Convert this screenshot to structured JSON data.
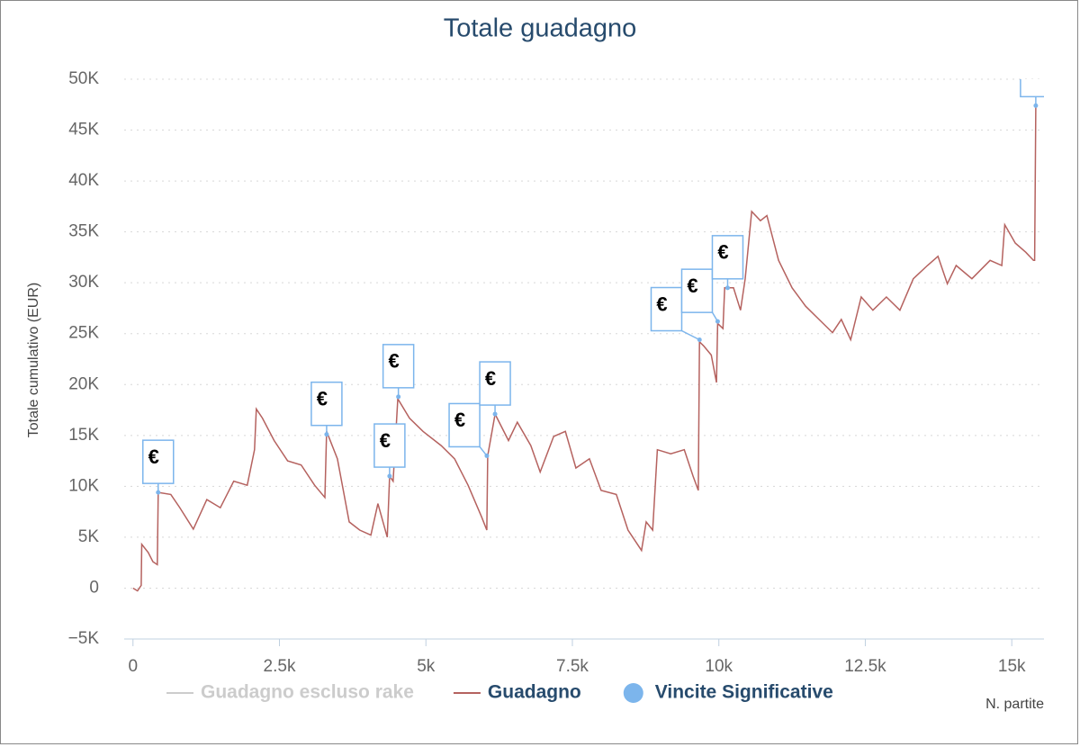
{
  "chart_data": {
    "type": "line",
    "title": "Totale guadagno",
    "y_axis_title": "Totale cumulativo (EUR)",
    "x_axis_title": "N. partite",
    "xlim": [
      -150,
      15550
    ],
    "xticks": [
      0,
      {
        "value": 2500,
        "label": "2.5k"
      },
      {
        "value": 5000,
        "label": "5k"
      },
      {
        "value": 7500,
        "label": "7.5k"
      },
      {
        "value": 10000,
        "label": "10k"
      },
      {
        "value": 12500,
        "label": "12.5k"
      },
      {
        "value": 15000,
        "label": "15k"
      }
    ],
    "ylim": [
      -5000,
      50000
    ],
    "yticks": [
      {
        "value": -5000,
        "label": "−5K"
      },
      0,
      {
        "value": 5000,
        "label": "5K"
      },
      {
        "value": 10000,
        "label": "10K"
      },
      {
        "value": 15000,
        "label": "15K"
      },
      {
        "value": 20000,
        "label": "20K"
      },
      {
        "value": 25000,
        "label": "25K"
      },
      {
        "value": 30000,
        "label": "30K"
      },
      {
        "value": 35000,
        "label": "35K"
      },
      {
        "value": 40000,
        "label": "40K"
      },
      {
        "value": 45000,
        "label": "45K"
      },
      {
        "value": 50000,
        "label": "50K"
      }
    ],
    "grid": true,
    "series": [
      {
        "name": "Guadagno escluso rake",
        "color": "#cccccc",
        "visible": false
      },
      {
        "name": "Guadagno",
        "color": "#b5625f",
        "visible": true,
        "x": [
          0,
          77,
          140,
          150,
          260,
          340,
          415,
          430,
          645,
          800,
          1030,
          1260,
          1490,
          1720,
          1950,
          2075,
          2105,
          2210,
          2410,
          2640,
          2870,
          3100,
          3275,
          3305,
          3490,
          3690,
          3870,
          4060,
          4180,
          4340,
          4380,
          4440,
          4520,
          4720,
          4950,
          5260,
          5490,
          5720,
          5950,
          6040,
          6055,
          6180,
          6410,
          6560,
          6790,
          6950,
          7180,
          7380,
          7560,
          7790,
          7990,
          8250,
          8450,
          8680,
          8760,
          8870,
          8950,
          9180,
          9410,
          9560,
          9650,
          9670,
          9740,
          9870,
          9960,
          9980,
          10070,
          10100,
          10250,
          10370,
          10450,
          10560,
          10710,
          10820,
          11020,
          11250,
          11480,
          11710,
          11940,
          12090,
          12250,
          12430,
          12630,
          12860,
          13090,
          13320,
          13560,
          13740,
          13900,
          14050,
          14320,
          14630,
          14830,
          14880,
          15060,
          15240,
          15370,
          15390,
          15410
        ],
        "values": [
          0,
          -270,
          270,
          4300,
          3500,
          2600,
          2300,
          9400,
          9200,
          7900,
          5800,
          8700,
          7900,
          10500,
          10100,
          13600,
          17600,
          16700,
          14500,
          12500,
          12100,
          10100,
          8900,
          15400,
          12700,
          6500,
          5700,
          5200,
          8300,
          5000,
          11000,
          10500,
          18600,
          16700,
          15400,
          14000,
          12700,
          10100,
          7000,
          5700,
          13000,
          17100,
          14500,
          16300,
          14000,
          11400,
          14900,
          15400,
          11800,
          12700,
          9600,
          9200,
          5700,
          3700,
          6500,
          5700,
          13600,
          13200,
          13600,
          11000,
          9600,
          24200,
          23800,
          22900,
          20200,
          26000,
          25500,
          29500,
          29500,
          27300,
          30400,
          37000,
          36100,
          36600,
          32200,
          29500,
          27700,
          26400,
          25100,
          26400,
          24400,
          28600,
          27300,
          28600,
          27300,
          30400,
          31700,
          32600,
          29900,
          31700,
          30400,
          32200,
          31700,
          35700,
          33900,
          33000,
          32200,
          32200,
          47400
        ]
      }
    ],
    "flags": {
      "name": "Vincite Significative",
      "color": "#7cb5ec",
      "title": "€",
      "x": [
        430,
        3305,
        4380,
        4530,
        6040,
        6180,
        9670,
        9980,
        10150,
        15410
      ],
      "values": [
        9400,
        15100,
        11000,
        18800,
        13000,
        17100,
        24400,
        26200,
        29500,
        47400
      ]
    }
  }
}
